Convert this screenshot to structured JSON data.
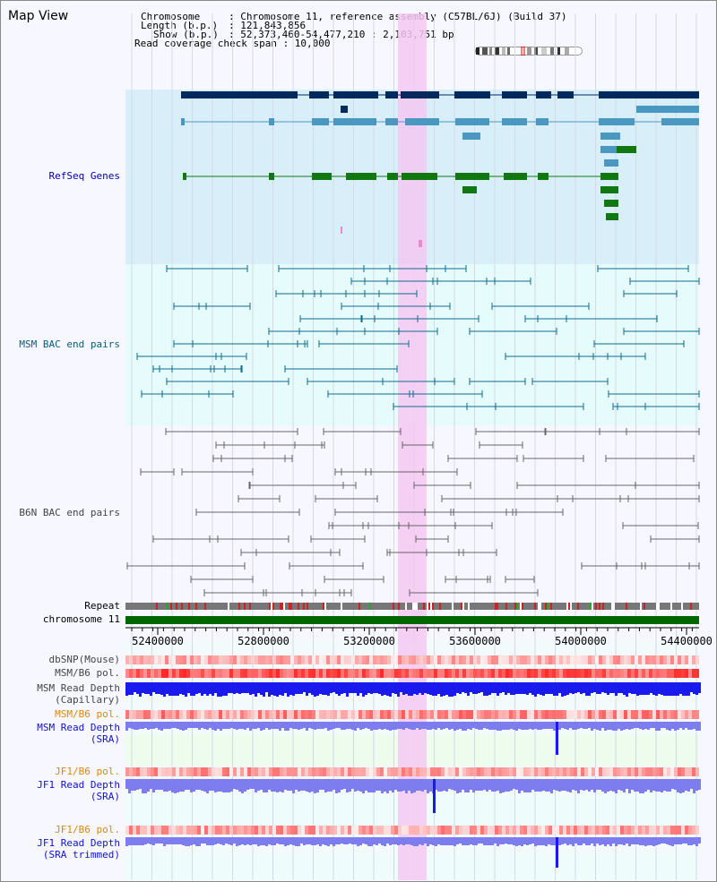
{
  "header": {
    "title": "Map View",
    "chromosome_key": "Chromosome",
    "chromosome_value": ": Chromosome 11, reference assembly (C57BL/6J) (Build 37)",
    "length_key": "Length (b.p.)",
    "length_value": ": 121,843,856",
    "show_key": "Show (b.p.)",
    "show_value": ": 52,373,460-54,477,210 : 2,103,751 bp",
    "coverage_line": "Read coverage check span : 10,000"
  },
  "tracks": {
    "refseq": "RefSeq Genes",
    "msm_bac": "MSM BAC end pairs",
    "b6n_bac": "B6N BAC end pairs",
    "repeat": "Repeat",
    "chromosome": "chromosome 11",
    "dbsnp": "dbSNP(Mouse)",
    "msm_pol": "MSM/B6 pol.",
    "msm_depth_cap_1": "MSM Read Depth",
    "msm_depth_cap_2": "(Capillary)",
    "msm_pol2": "MSM/B6 pol.",
    "msm_depth_sra_1": "MSM Read Depth",
    "msm_depth_sra_2": "(SRA)",
    "jf1_pol": "JF1/B6 pol.",
    "jf1_depth_1": "JF1 Read Depth",
    "jf1_depth_2": "(SRA)",
    "jf1_pol2": "JF1/B6 pol.",
    "jf1_trim_1": "JF1 Read Depth",
    "jf1_trim_2": "(SRA trimmed)"
  },
  "axis": {
    "ticks": [
      "52400000",
      "52800000",
      "53200000",
      "53600000",
      "54000000",
      "54400000"
    ]
  },
  "colors": {
    "refseq_bg": "#d8effa",
    "msm_bg": "#e6fbfb",
    "highlight": "#f5c8f2",
    "gene_dark": "#002a5e",
    "gene_mid": "#4a97c2",
    "gene_green": "#117711",
    "msm_line": "#0e6e8e",
    "b6n_line": "#666666",
    "chrom_bar": "#006600",
    "depth_blue": "#1a1aee",
    "depth_light": "#7d7df0"
  }
}
